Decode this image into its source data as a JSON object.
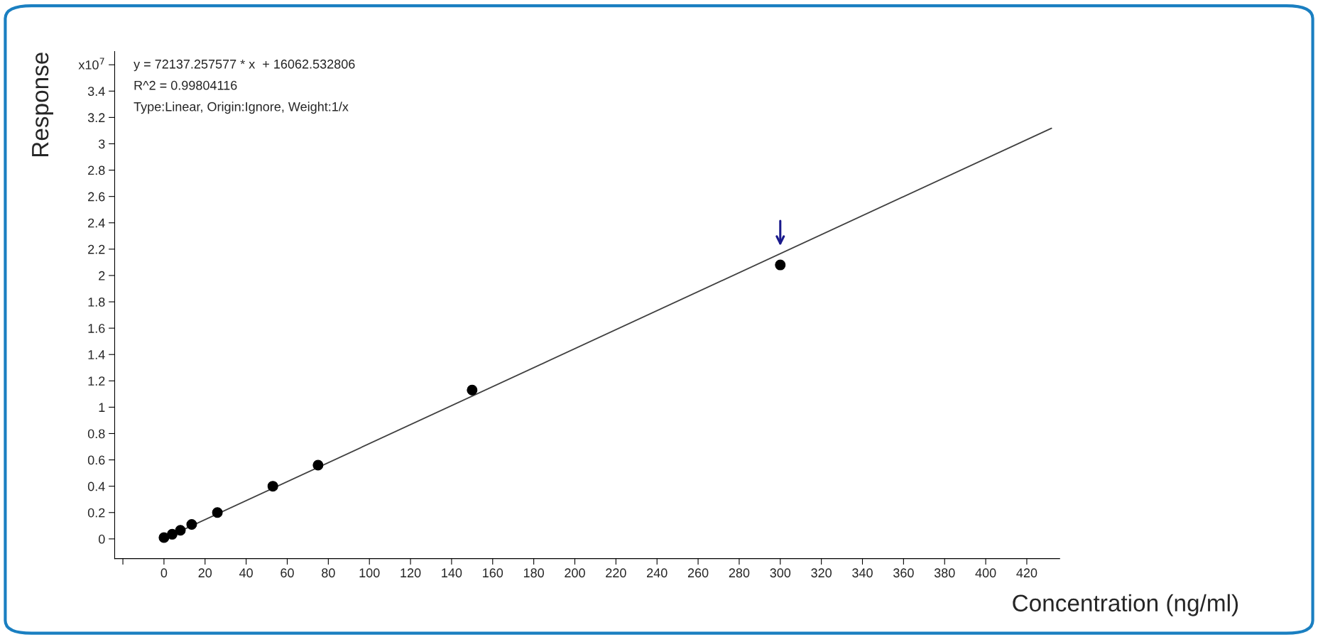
{
  "chart_data": {
    "type": "scatter",
    "xlabel": "Concentration (ng/ml)",
    "ylabel": "Response",
    "annotations": [
      "y = 72137.257577 * x  + 16062.532806",
      "R^2 = 0.99804116",
      "Type:Linear, Origin:Ignore, Weight:1/x"
    ],
    "series": [
      {
        "color": "#000000",
        "x": [
          0,
          4,
          8,
          13.5,
          26,
          53,
          75,
          150,
          300
        ],
        "values": [
          0.01,
          0.035,
          0.065,
          0.11,
          0.2,
          0.4,
          0.56,
          1.13,
          2.08
        ]
      },
      {
        "type": "line",
        "marker": "none",
        "color": "#404040",
        "x": [
          0,
          432
        ],
        "values": [
          0.002,
          3.118
        ]
      }
    ],
    "marker": "circle",
    "legend": false,
    "grid": false,
    "xlim": [
      -24,
      436
    ],
    "ylim": [
      -0.15,
      3.7
    ],
    "xticks": [
      {
        "value": -20,
        "label": null
      },
      0,
      20,
      40,
      60,
      80,
      100,
      120,
      140,
      160,
      180,
      200,
      220,
      240,
      260,
      280,
      300,
      320,
      340,
      360,
      380,
      400,
      420
    ],
    "yticks": [
      0,
      0.2,
      0.4,
      0.6,
      0.8,
      1,
      1.2,
      1.4,
      1.6,
      1.8,
      2,
      2.2,
      2.4,
      2.6,
      2.8,
      3,
      3.2,
      3.4,
      {
        "value": 3.6,
        "label": "x10$^{7}$"
      }
    ]
  }
}
